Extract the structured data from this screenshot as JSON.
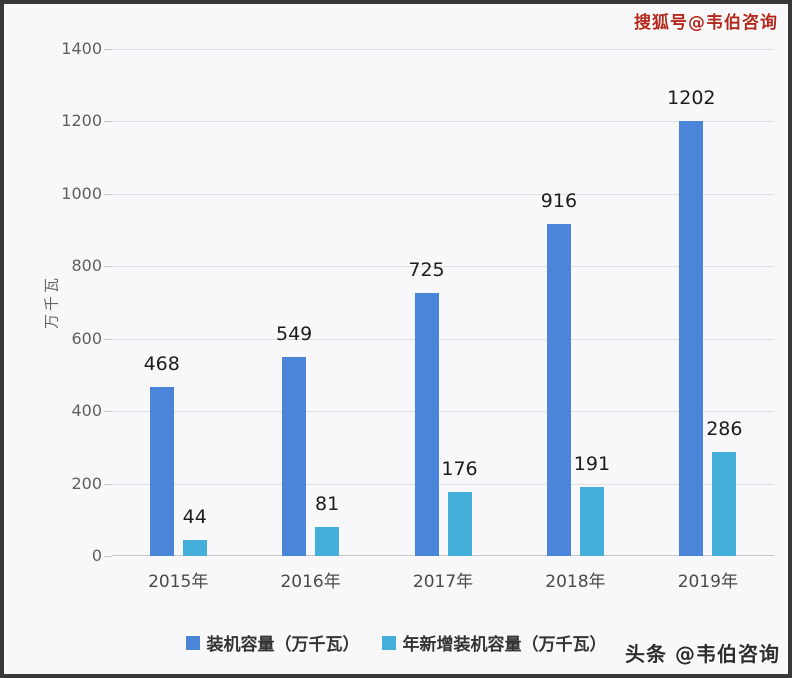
{
  "watermarks": {
    "top_right": "搜狐号@韦伯咨询",
    "bottom_right": "头条 @韦伯咨询"
  },
  "chart_data": {
    "type": "bar",
    "title": "",
    "xlabel": "",
    "ylabel": "万千瓦",
    "ylim": [
      0,
      1400
    ],
    "ytick_step": 200,
    "grid": true,
    "legend_position": "bottom",
    "categories": [
      "2015年",
      "2016年",
      "2017年",
      "2018年",
      "2019年"
    ],
    "series": [
      {
        "name": "装机容量（万千瓦）",
        "color": "#4a85d9",
        "values": [
          468,
          549,
          725,
          916,
          1202
        ]
      },
      {
        "name": "年新增装机容量（万千瓦）",
        "color": "#45afdc",
        "values": [
          44,
          81,
          176,
          191,
          286
        ]
      }
    ]
  },
  "colors": {
    "background": "#f8f8fa",
    "frame": "#383838",
    "grid": "#e0e0e5",
    "baseline": "#c6c6c9",
    "ytick_text": "#5f5f5f",
    "xlabel_text": "#4a4a4a",
    "data_label": "#1c1c1c",
    "legend_text": "#333333",
    "ylabel_text": "#666666",
    "watermark_top": "#b5291d",
    "watermark_bottom": "#2e2e2e"
  }
}
